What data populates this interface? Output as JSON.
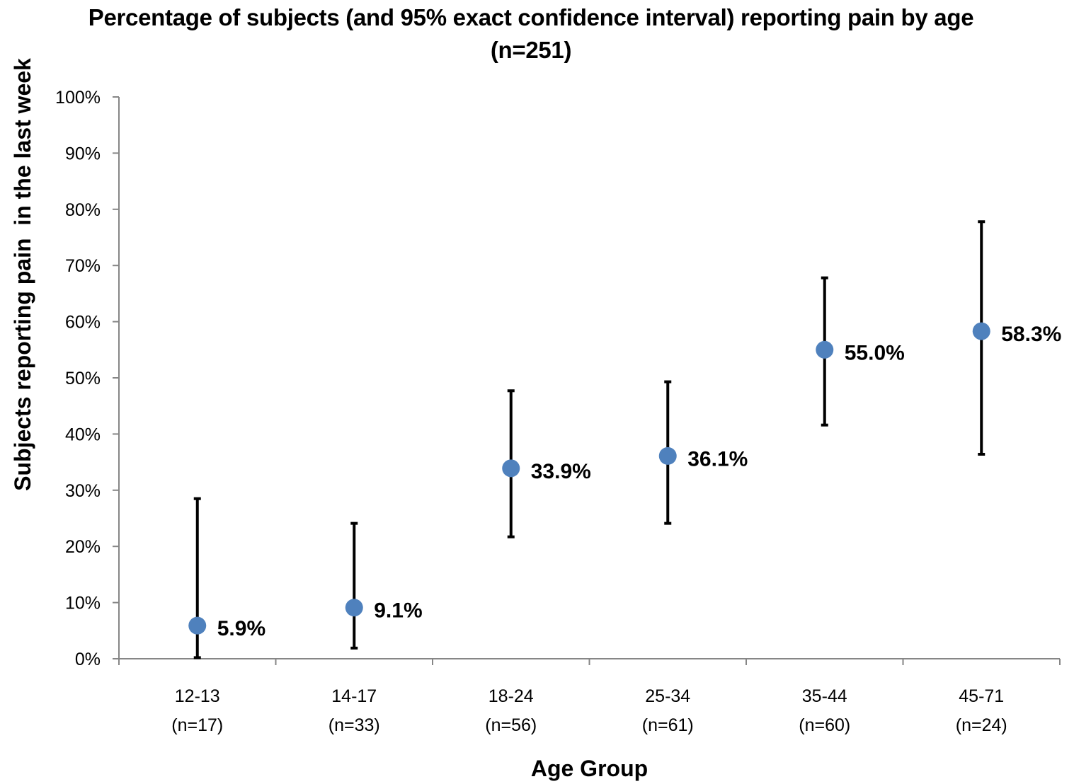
{
  "chart_data": {
    "type": "scatter",
    "title": "Percentage of subjects (and 95% exact confidence interval) reporting pain by age (n=251)",
    "xlabel": "Age Group",
    "ylabel": "Subjects reporting pain  in the last week",
    "ylim": [
      0,
      100
    ],
    "y_unit": "%",
    "grid": false,
    "legend": "none",
    "y_ticks": [
      "0%",
      "10%",
      "20%",
      "30%",
      "40%",
      "50%",
      "60%",
      "70%",
      "80%",
      "90%",
      "100%"
    ],
    "categories": [
      {
        "range": "12-13",
        "n": "(n=17)"
      },
      {
        "range": "14-17",
        "n": "(n=33)"
      },
      {
        "range": "18-24",
        "n": "(n=56)"
      },
      {
        "range": "25-34",
        "n": "(n=61)"
      },
      {
        "range": "35-44",
        "n": "(n=60)"
      },
      {
        "range": "45-71",
        "n": "(n=24)"
      }
    ],
    "series": [
      {
        "values": [
          5.9,
          9.1,
          33.9,
          36.1,
          55.0,
          58.3
        ],
        "labels": [
          "5.9%",
          "9.1%",
          "33.9%",
          "36.1%",
          "55.0%",
          "58.3%"
        ],
        "ci_lower": [
          0.2,
          1.9,
          21.7,
          24.1,
          41.6,
          36.4
        ],
        "ci_upper": [
          28.5,
          24.1,
          47.7,
          49.3,
          67.8,
          77.8
        ],
        "color": "#4F81BD"
      }
    ]
  }
}
